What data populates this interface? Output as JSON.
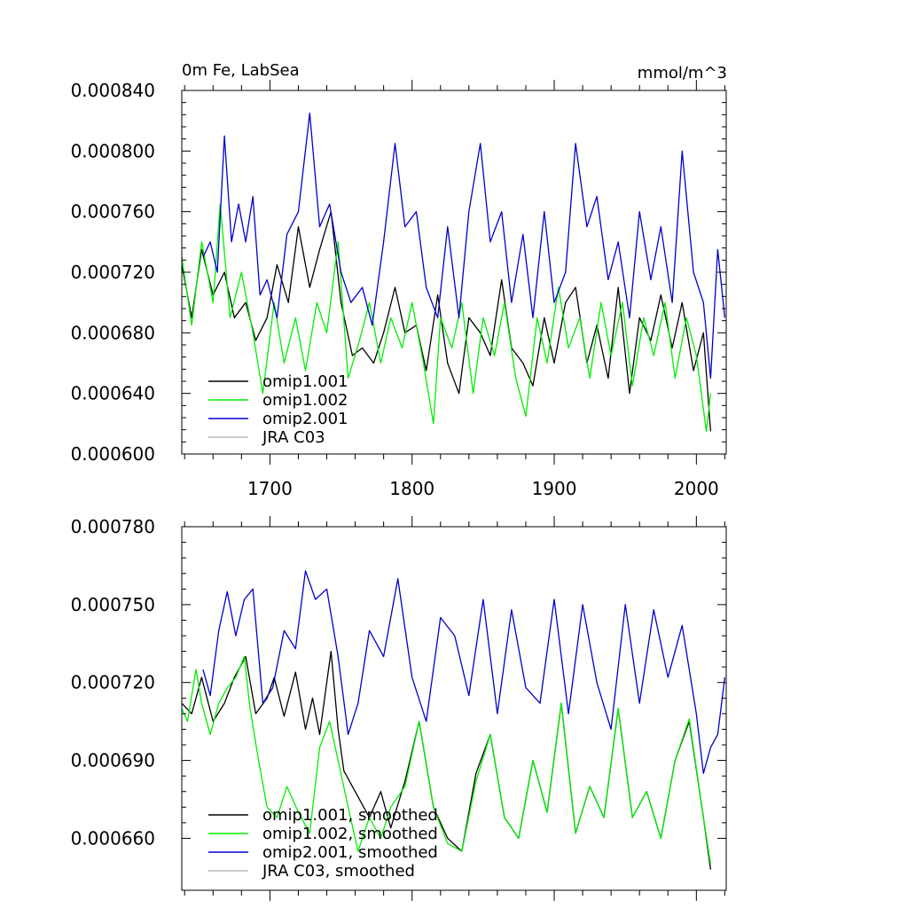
{
  "colors": {
    "omip1_001": "#000000",
    "omip1_002": "#00ee00",
    "omip2_001": "#0000cc",
    "jra_c03": "#bbbbbb"
  },
  "top": {
    "title_left": "0m Fe, LabSea",
    "title_right": "mmol/m^3",
    "legend": [
      "omip1.001",
      "omip1.002",
      "omip2.001",
      "JRA C03"
    ]
  },
  "bottom": {
    "legend": [
      "omip1.001, smoothed",
      "omip1.002, smoothed",
      "omip2.001, smoothed",
      "JRA C03, smoothed"
    ]
  },
  "chart_data": [
    {
      "type": "line",
      "title": "0m Fe, LabSea",
      "units": "mmol/m^3",
      "xlim": [
        1638,
        2021
      ],
      "ylim": [
        0.0006,
        0.00084
      ],
      "xticks": [
        1700,
        1800,
        1900,
        2000
      ],
      "xtick_labels": [
        "1700",
        "1800",
        "1900",
        "2000"
      ],
      "yticks": [
        0.0006,
        0.00064,
        0.00068,
        0.00072,
        0.00076,
        0.0008,
        0.00084
      ],
      "ytick_labels": [
        "0.000600",
        "0.000640",
        "0.000680",
        "0.000720",
        "0.000760",
        "0.000800",
        "0.000840"
      ],
      "legend_position": "bottom-left",
      "series": [
        {
          "name": "omip1.001",
          "key": "omip1_001",
          "x": [
            1638,
            1645,
            1652,
            1660,
            1668,
            1675,
            1683,
            1690,
            1698,
            1705,
            1713,
            1720,
            1728,
            1735,
            1743,
            1750,
            1758,
            1765,
            1773,
            1780,
            1788,
            1795,
            1803,
            1810,
            1818,
            1825,
            1833,
            1840,
            1848,
            1855,
            1863,
            1870,
            1878,
            1885,
            1893,
            1900,
            1908,
            1915,
            1923,
            1930,
            1938,
            1945,
            1953,
            1960,
            1968,
            1975,
            1983,
            1990,
            1998,
            2005,
            2010
          ],
          "values": [
            0.000725,
            0.00069,
            0.000735,
            0.000705,
            0.00072,
            0.00069,
            0.0007,
            0.000675,
            0.00069,
            0.000725,
            0.0007,
            0.00075,
            0.00071,
            0.000735,
            0.00076,
            0.0007,
            0.000665,
            0.00067,
            0.00066,
            0.00068,
            0.00071,
            0.00068,
            0.000685,
            0.000655,
            0.000705,
            0.00066,
            0.00064,
            0.00069,
            0.00068,
            0.000665,
            0.000715,
            0.00067,
            0.00066,
            0.000645,
            0.00069,
            0.00066,
            0.0007,
            0.00071,
            0.00066,
            0.000685,
            0.00065,
            0.00071,
            0.00064,
            0.00069,
            0.000675,
            0.000705,
            0.00067,
            0.0007,
            0.000655,
            0.00068,
            0.000615
          ]
        },
        {
          "name": "omip1.002",
          "key": "omip1_002",
          "x": [
            1638,
            1645,
            1652,
            1660,
            1665,
            1672,
            1680,
            1688,
            1695,
            1703,
            1710,
            1718,
            1725,
            1733,
            1740,
            1748,
            1755,
            1763,
            1770,
            1778,
            1785,
            1793,
            1800,
            1808,
            1815,
            1820,
            1828,
            1835,
            1843,
            1850,
            1858,
            1865,
            1873,
            1880,
            1888,
            1895,
            1903,
            1910,
            1918,
            1925,
            1933,
            1940,
            1948,
            1955,
            1963,
            1970,
            1978,
            1985,
            1993,
            2000,
            2007,
            2010
          ],
          "values": [
            0.00073,
            0.000685,
            0.00074,
            0.0007,
            0.000765,
            0.00069,
            0.00072,
            0.00068,
            0.00064,
            0.0007,
            0.00066,
            0.00069,
            0.000655,
            0.0007,
            0.00068,
            0.00074,
            0.00065,
            0.000675,
            0.0007,
            0.00066,
            0.00069,
            0.00067,
            0.0007,
            0.00066,
            0.00062,
            0.00069,
            0.00067,
            0.0007,
            0.00064,
            0.00069,
            0.000665,
            0.0007,
            0.00065,
            0.000625,
            0.00069,
            0.00066,
            0.00071,
            0.00067,
            0.00069,
            0.00065,
            0.0007,
            0.000665,
            0.0007,
            0.000645,
            0.00069,
            0.000665,
            0.0007,
            0.00065,
            0.00069,
            0.000665,
            0.000615,
            0.00064
          ]
        },
        {
          "name": "omip2.001",
          "key": "omip2_001",
          "x": [
            1653,
            1658,
            1663,
            1668,
            1673,
            1678,
            1683,
            1688,
            1693,
            1698,
            1705,
            1712,
            1720,
            1728,
            1735,
            1742,
            1750,
            1757,
            1765,
            1772,
            1780,
            1788,
            1795,
            1803,
            1810,
            1818,
            1825,
            1833,
            1840,
            1848,
            1855,
            1863,
            1870,
            1878,
            1885,
            1893,
            1900,
            1908,
            1915,
            1923,
            1930,
            1938,
            1945,
            1953,
            1960,
            1968,
            1975,
            1983,
            1990,
            1998,
            2005,
            2010,
            2015,
            2020
          ],
          "values": [
            0.00073,
            0.00074,
            0.00072,
            0.00081,
            0.00074,
            0.000765,
            0.00074,
            0.00077,
            0.000705,
            0.000715,
            0.00069,
            0.000745,
            0.00076,
            0.000825,
            0.00075,
            0.000765,
            0.00072,
            0.0007,
            0.00071,
            0.000685,
            0.00074,
            0.000805,
            0.00075,
            0.00076,
            0.00071,
            0.00069,
            0.00075,
            0.00069,
            0.00076,
            0.000805,
            0.00074,
            0.00076,
            0.0007,
            0.000745,
            0.00069,
            0.00076,
            0.0007,
            0.00072,
            0.000805,
            0.00075,
            0.00077,
            0.000715,
            0.00074,
            0.00069,
            0.00076,
            0.000715,
            0.00075,
            0.0007,
            0.0008,
            0.00072,
            0.0007,
            0.00065,
            0.000735,
            0.00069
          ]
        },
        {
          "name": "JRA C03",
          "key": "jra_c03",
          "x": [],
          "values": []
        }
      ]
    },
    {
      "type": "line",
      "title": "",
      "xlim": [
        1638,
        2021
      ],
      "ylim": [
        0.00064,
        0.00078
      ],
      "xticks": [
        1700,
        1800,
        1900,
        2000
      ],
      "xtick_labels": [],
      "yticks": [
        0.00066,
        0.00069,
        0.00072,
        0.00075,
        0.00078
      ],
      "ytick_labels": [
        "0.000660",
        "0.000690",
        "0.000720",
        "0.000750",
        "0.000780"
      ],
      "legend_position": "bottom-left",
      "series": [
        {
          "name": "omip1.001, smoothed",
          "key": "omip1_001",
          "x": [
            1638,
            1645,
            1652,
            1660,
            1668,
            1675,
            1683,
            1690,
            1698,
            1703,
            1710,
            1718,
            1725,
            1730,
            1735,
            1740,
            1743,
            1748,
            1752,
            1758,
            1765,
            1770,
            1778,
            1785,
            1795,
            1805,
            1815,
            1825,
            1835,
            1845,
            1855,
            1865,
            1875,
            1885,
            1895,
            1905,
            1915,
            1925,
            1935,
            1945,
            1955,
            1965,
            1975,
            1985,
            1995,
            2005,
            2010
          ],
          "values": [
            0.000712,
            0.000708,
            0.000722,
            0.000705,
            0.000712,
            0.000722,
            0.00073,
            0.000708,
            0.000714,
            0.000722,
            0.000707,
            0.000724,
            0.000702,
            0.000714,
            0.0007,
            0.00072,
            0.000732,
            0.000702,
            0.000686,
            0.00068,
            0.000673,
            0.000668,
            0.000678,
            0.000664,
            0.000682,
            0.000705,
            0.000672,
            0.00066,
            0.000655,
            0.000685,
            0.0007,
            0.000668,
            0.00066,
            0.00069,
            0.00067,
            0.000712,
            0.000662,
            0.00068,
            0.000668,
            0.00071,
            0.000668,
            0.000678,
            0.00066,
            0.00069,
            0.000705,
            0.000668,
            0.000648
          ]
        },
        {
          "name": "omip1.002, smoothed",
          "key": "omip1_002",
          "x": [
            1638,
            1642,
            1648,
            1652,
            1658,
            1664,
            1670,
            1676,
            1682,
            1686,
            1692,
            1698,
            1705,
            1712,
            1720,
            1728,
            1735,
            1742,
            1748,
            1755,
            1762,
            1770,
            1778,
            1785,
            1795,
            1805,
            1815,
            1825,
            1835,
            1845,
            1855,
            1865,
            1875,
            1885,
            1895,
            1905,
            1915,
            1925,
            1935,
            1945,
            1955,
            1965,
            1975,
            1985,
            1995,
            2005,
            2010
          ],
          "values": [
            0.00071,
            0.000705,
            0.000725,
            0.000712,
            0.0007,
            0.000712,
            0.000718,
            0.000722,
            0.00073,
            0.00071,
            0.00069,
            0.000672,
            0.000668,
            0.00068,
            0.00067,
            0.000662,
            0.000695,
            0.000705,
            0.00069,
            0.000672,
            0.000655,
            0.000668,
            0.00066,
            0.000672,
            0.00068,
            0.000705,
            0.000672,
            0.000658,
            0.000655,
            0.000682,
            0.0007,
            0.000668,
            0.00066,
            0.00069,
            0.00067,
            0.000712,
            0.000662,
            0.00068,
            0.000668,
            0.00071,
            0.000668,
            0.000678,
            0.00066,
            0.00069,
            0.000706,
            0.000668,
            0.00065
          ]
        },
        {
          "name": "omip2.001, smoothed",
          "key": "omip2_001",
          "x": [
            1653,
            1658,
            1664,
            1670,
            1676,
            1682,
            1688,
            1695,
            1702,
            1710,
            1718,
            1725,
            1732,
            1740,
            1748,
            1755,
            1762,
            1770,
            1780,
            1790,
            1800,
            1810,
            1820,
            1830,
            1840,
            1850,
            1860,
            1870,
            1880,
            1890,
            1900,
            1910,
            1920,
            1930,
            1940,
            1950,
            1960,
            1970,
            1980,
            1990,
            2000,
            2005,
            2010,
            2015,
            2020
          ],
          "values": [
            0.000725,
            0.000715,
            0.00074,
            0.000755,
            0.000738,
            0.000752,
            0.000756,
            0.000712,
            0.000718,
            0.00074,
            0.000733,
            0.000763,
            0.000752,
            0.000756,
            0.00073,
            0.0007,
            0.000712,
            0.00074,
            0.00073,
            0.00076,
            0.000722,
            0.000705,
            0.000745,
            0.000738,
            0.000715,
            0.000752,
            0.000708,
            0.000748,
            0.000718,
            0.000712,
            0.000752,
            0.000708,
            0.00075,
            0.00072,
            0.000702,
            0.00075,
            0.000712,
            0.000748,
            0.000722,
            0.000742,
            0.000708,
            0.000685,
            0.000695,
            0.0007,
            0.000722
          ]
        },
        {
          "name": "JRA C03, smoothed",
          "key": "jra_c03",
          "x": [],
          "values": []
        }
      ]
    }
  ]
}
